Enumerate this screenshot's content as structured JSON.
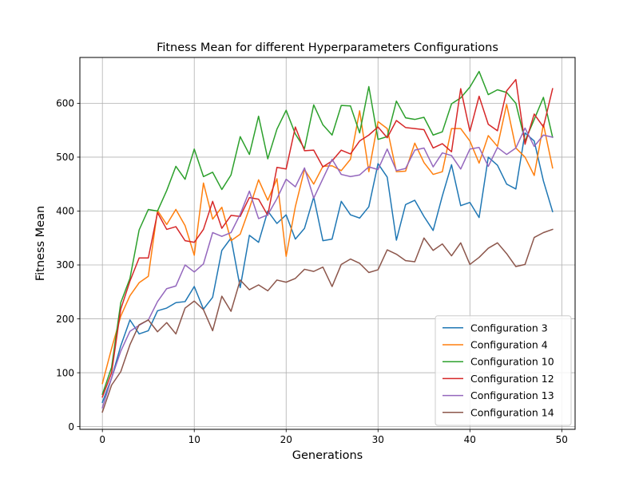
{
  "chart_data": {
    "type": "line",
    "title": "Fitness Mean for different Hyperparameters Configurations",
    "xlabel": "Generations",
    "ylabel": "Fitness Mean",
    "xlim": [
      -2.45,
      51.45
    ],
    "ylim": [
      -5,
      685
    ],
    "xticks": [
      0,
      10,
      20,
      30,
      40,
      50
    ],
    "yticks": [
      0,
      100,
      200,
      300,
      400,
      500,
      600
    ],
    "grid": true,
    "legend_position": "lower-right",
    "x": [
      0,
      1,
      2,
      3,
      4,
      5,
      6,
      7,
      8,
      9,
      10,
      11,
      12,
      13,
      14,
      15,
      16,
      17,
      18,
      19,
      20,
      21,
      22,
      23,
      24,
      25,
      26,
      27,
      28,
      29,
      30,
      31,
      32,
      33,
      34,
      35,
      36,
      37,
      38,
      39,
      40,
      41,
      42,
      43,
      44,
      45,
      46,
      47,
      48,
      49
    ],
    "series": [
      {
        "name": "Configuration 3",
        "color": "#1f77b4",
        "values": [
          45,
          90,
          150,
          198,
          172,
          178,
          215,
          220,
          230,
          232,
          260,
          218,
          240,
          327,
          350,
          258,
          355,
          342,
          400,
          377,
          393,
          348,
          368,
          426,
          345,
          348,
          418,
          393,
          387,
          408,
          488,
          463,
          346,
          412,
          420,
          390,
          364,
          428,
          486,
          410,
          416,
          388,
          500,
          485,
          450,
          441,
          545,
          530,
          456,
          399
        ]
      },
      {
        "name": "Configuration 4",
        "color": "#ff7f0e",
        "values": [
          80,
          145,
          205,
          243,
          267,
          279,
          401,
          375,
          403,
          373,
          318,
          452,
          385,
          407,
          345,
          357,
          405,
          458,
          420,
          460,
          316,
          408,
          477,
          450,
          483,
          484,
          475,
          496,
          586,
          473,
          566,
          553,
          473,
          474,
          526,
          490,
          468,
          473,
          553,
          553,
          530,
          489,
          540,
          520,
          598,
          517,
          500,
          466,
          561,
          480
        ]
      },
      {
        "name": "Configuration 10",
        "color": "#2ca02c",
        "values": [
          60,
          110,
          230,
          275,
          365,
          403,
          400,
          438,
          483,
          459,
          515,
          464,
          472,
          440,
          467,
          538,
          505,
          576,
          497,
          552,
          587,
          543,
          516,
          597,
          560,
          541,
          596,
          595,
          545,
          631,
          533,
          538,
          604,
          573,
          570,
          574,
          541,
          547,
          599,
          610,
          630,
          659,
          616,
          625,
          620,
          600,
          530,
          570,
          611,
          537
        ]
      },
      {
        "name": "Configuration 12",
        "color": "#d62728",
        "values": [
          55,
          100,
          218,
          270,
          313,
          313,
          397,
          366,
          371,
          345,
          342,
          366,
          418,
          368,
          392,
          390,
          425,
          422,
          392,
          481,
          478,
          556,
          512,
          513,
          482,
          493,
          513,
          506,
          530,
          541,
          556,
          536,
          568,
          555,
          553,
          551,
          517,
          525,
          510,
          627,
          548,
          613,
          561,
          549,
          623,
          644,
          524,
          580,
          556,
          627
        ]
      },
      {
        "name": "Configuration 13",
        "color": "#9467bd",
        "values": [
          35,
          90,
          140,
          177,
          188,
          198,
          232,
          256,
          261,
          300,
          287,
          302,
          360,
          353,
          360,
          394,
          437,
          386,
          393,
          423,
          459,
          445,
          480,
          424,
          460,
          496,
          468,
          464,
          467,
          482,
          477,
          515,
          475,
          479,
          513,
          517,
          482,
          508,
          503,
          478,
          515,
          518,
          483,
          518,
          505,
          517,
          554,
          520,
          541,
          537
        ]
      },
      {
        "name": "Configuration 14",
        "color": "#8c564b",
        "values": [
          27,
          77,
          102,
          152,
          189,
          198,
          176,
          193,
          172,
          220,
          233,
          217,
          178,
          242,
          214,
          272,
          254,
          263,
          252,
          272,
          268,
          275,
          292,
          288,
          296,
          260,
          301,
          311,
          303,
          286,
          291,
          328,
          320,
          308,
          306,
          350,
          327,
          339,
          317,
          341,
          301,
          314,
          331,
          341,
          321,
          297,
          301,
          351,
          360,
          366
        ]
      }
    ]
  }
}
